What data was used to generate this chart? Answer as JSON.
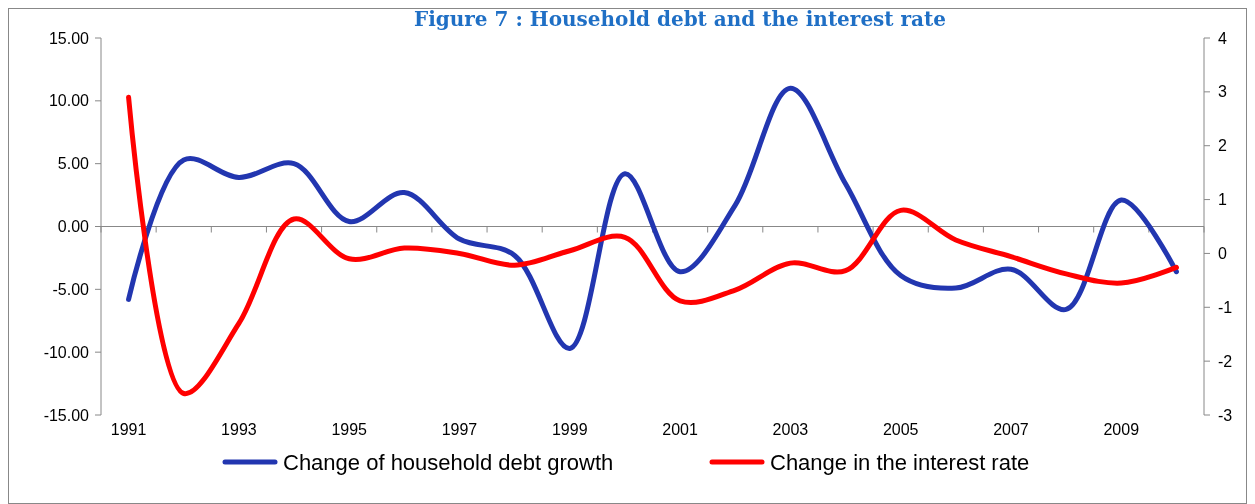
{
  "chart_data": {
    "type": "line",
    "title": "Figure 7 : Household debt and the interest rate",
    "categories": [
      "1991",
      null,
      "1993",
      null,
      "1995",
      null,
      "1997",
      null,
      "1999",
      null,
      "2001",
      null,
      "2003",
      null,
      "2005",
      null,
      "2007",
      null,
      "2009",
      null
    ],
    "series": [
      {
        "name": "Change of household debt growth",
        "color": "#2236b0",
        "values": [
          -5.8,
          5.3,
          3.9,
          5.0,
          0.4,
          2.7,
          -1.0,
          -2.3,
          -9.7,
          4.2,
          -3.6,
          1.7,
          11.0,
          3.4,
          -3.9,
          -4.9,
          -3.4,
          -6.6,
          2.1,
          -3.6
        ]
      },
      {
        "name": "Change in the interest rate",
        "color": "#ff0000",
        "axis": "y2",
        "values": [
          2.9,
          -2.6,
          -1.3,
          0.64,
          -0.1,
          0.1,
          0.0,
          -0.22,
          0.05,
          0.3,
          -0.88,
          -0.68,
          -0.18,
          -0.32,
          0.8,
          0.25,
          -0.06,
          -0.38,
          -0.55,
          -0.26
        ]
      }
    ],
    "ylim": [
      -15,
      15
    ],
    "yticks": [
      {
        "value": -15,
        "label": "-15.00"
      },
      {
        "value": -10,
        "label": "-10.00"
      },
      {
        "value": -5,
        "label": "-5.00"
      },
      {
        "value": 0,
        "label": "0.00"
      },
      {
        "value": 5,
        "label": "5.00"
      },
      {
        "value": 10,
        "label": "10.00"
      },
      {
        "value": 15,
        "label": "15.00"
      }
    ],
    "y2lim": [
      -3,
      4
    ],
    "y2ticks": [
      -3,
      -2,
      -1,
      0,
      1,
      2,
      3,
      4
    ],
    "legend": "bottom",
    "marker": "none",
    "line_style": "solid"
  }
}
